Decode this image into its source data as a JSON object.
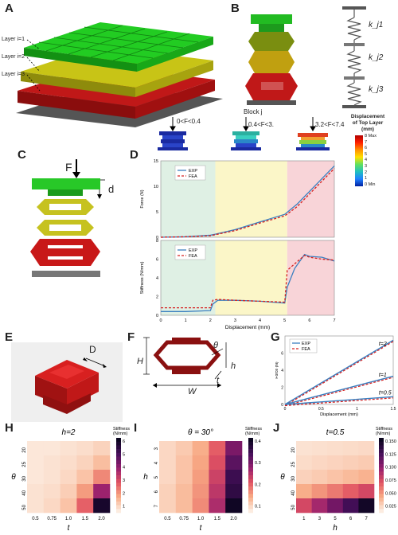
{
  "panels": {
    "A": "A",
    "B": "B",
    "C": "C",
    "D": "D",
    "E": "E",
    "F": "F",
    "G": "G",
    "H": "H",
    "I": "I",
    "J": "J"
  },
  "panelA": {
    "layers": [
      "Layer i=1",
      "Layer i=2",
      "Layer i=3"
    ]
  },
  "panelB": {
    "block_label": "Block j",
    "springs": [
      "k_j1",
      "k_j2",
      "k_j3"
    ]
  },
  "panelC": {
    "force": "F",
    "disp": "d"
  },
  "panelD": {
    "insets": [
      "0<F<0.4",
      "0.4<F<3.",
      "3.2<F<7.4"
    ],
    "colorbar_title": [
      "Displacement",
      "of Top Layer",
      "(mm)"
    ],
    "colorbar_ticks": [
      "8 Max",
      "7",
      "6",
      "5",
      "4",
      "3",
      "2",
      "1",
      "0 Min"
    ],
    "top_ylabel": "Force (N)",
    "bottom_ylabel": "Stiffness (N/mm)",
    "xlabel": "Displacement (mm)",
    "legend": [
      "EXP",
      "FEA"
    ],
    "xticks": [
      "0",
      "1",
      "2",
      "3",
      "4",
      "5",
      "6",
      "7"
    ],
    "top_yticks": [
      "0",
      "5",
      "10",
      "15"
    ],
    "bottom_yticks": [
      "0",
      "2",
      "4",
      "6",
      "8"
    ]
  },
  "panelE": {
    "dim": "D"
  },
  "panelF": {
    "H": "H",
    "W": "W",
    "h": "h",
    "t": "t",
    "theta": "θ"
  },
  "panelG": {
    "legend": [
      "EXP",
      "FEA"
    ],
    "labels": [
      "t=2",
      "t=1",
      "t=0.5"
    ],
    "ylabel": "Force (N)",
    "xlabel": "Displacement (mm)",
    "xticks": [
      "0",
      "0.5",
      "1",
      "1.5"
    ],
    "yticks": [
      "0",
      "2",
      "4",
      "6"
    ]
  },
  "heatmapH": {
    "title": "h=2",
    "cbar_title": [
      "Stiffness",
      "(N/mm)"
    ],
    "xlabel": "t",
    "ylabel": "θ",
    "xticks": [
      "0.5",
      "0.75",
      "1.0",
      "1.5",
      "2.0"
    ],
    "yticks": [
      "20",
      "25",
      "30",
      "40",
      "50"
    ],
    "cbar_ticks": [
      "6",
      "5",
      "4",
      "3",
      "2",
      "1"
    ],
    "values": [
      [
        0.1,
        0.1,
        0.2,
        0.3,
        0.5
      ],
      [
        0.1,
        0.2,
        0.3,
        0.5,
        0.9
      ],
      [
        0.1,
        0.2,
        0.4,
        0.8,
        1.8
      ],
      [
        0.2,
        0.3,
        0.6,
        1.5,
        3.8
      ],
      [
        0.2,
        0.4,
        0.8,
        2.4,
        6.2
      ]
    ],
    "vmax": 6.5
  },
  "heatmapI": {
    "title": "θ = 30°",
    "cbar_title": [
      "Stiffness",
      "(N/mm)"
    ],
    "xlabel": "t",
    "ylabel": "h",
    "xticks": [
      "0.5",
      "0.75",
      "1.0",
      "1.5",
      "2.0"
    ],
    "yticks": [
      "3",
      "4",
      "5",
      "6",
      "7"
    ],
    "cbar_ticks": [
      "0.4",
      "0.3",
      "0.2",
      "0.1"
    ],
    "values": [
      [
        0.03,
        0.05,
        0.09,
        0.18,
        0.32
      ],
      [
        0.03,
        0.06,
        0.1,
        0.2,
        0.36
      ],
      [
        0.03,
        0.06,
        0.11,
        0.22,
        0.4
      ],
      [
        0.04,
        0.07,
        0.12,
        0.24,
        0.42
      ],
      [
        0.04,
        0.07,
        0.13,
        0.26,
        0.47
      ]
    ],
    "vmax": 0.48
  },
  "heatmapJ": {
    "title": "t=0.5",
    "cbar_title": [
      "Stiffness",
      "(N/mm)"
    ],
    "xlabel": "h",
    "ylabel": "θ",
    "xticks": [
      "1",
      "3",
      "5",
      "6",
      "7"
    ],
    "yticks": [
      "20",
      "25",
      "30",
      "40",
      "50"
    ],
    "cbar_ticks": [
      "0.150",
      "0.125",
      "0.100",
      "0.075",
      "0.050",
      "0.025"
    ],
    "values": [
      [
        0.005,
        0.006,
        0.007,
        0.008,
        0.009
      ],
      [
        0.008,
        0.01,
        0.012,
        0.014,
        0.016
      ],
      [
        0.013,
        0.016,
        0.02,
        0.024,
        0.028
      ],
      [
        0.03,
        0.04,
        0.05,
        0.06,
        0.07
      ],
      [
        0.07,
        0.09,
        0.11,
        0.13,
        0.155
      ]
    ],
    "vmax": 0.16
  },
  "chart_data": [
    {
      "type": "line",
      "name": "D-force",
      "xlabel": "Displacement (mm)",
      "ylabel": "Force (N)",
      "series": [
        {
          "name": "EXP",
          "x": [
            0,
            1,
            2,
            2.2,
            3,
            4,
            5,
            5.5,
            6,
            6.5,
            7
          ],
          "values": [
            0,
            0.1,
            0.4,
            0.6,
            1.5,
            3,
            4.5,
            6.5,
            9,
            11.5,
            14
          ]
        },
        {
          "name": "FEA",
          "x": [
            0,
            1,
            2,
            2.2,
            3,
            4,
            5,
            5.5,
            6,
            6.5,
            7
          ],
          "values": [
            0,
            0.1,
            0.3,
            0.5,
            1.3,
            2.8,
            4.2,
            6,
            8.5,
            11,
            13.5
          ]
        }
      ],
      "xlim": [
        0,
        7
      ],
      "ylim": [
        0,
        15
      ]
    },
    {
      "type": "line",
      "name": "D-stiffness",
      "xlabel": "Displacement (mm)",
      "ylabel": "Stiffness (N/mm)",
      "series": [
        {
          "name": "EXP",
          "x": [
            0,
            1,
            2,
            2.1,
            2.3,
            3,
            4,
            5,
            5.1,
            5.4,
            5.8,
            6,
            6.5,
            7
          ],
          "values": [
            0.4,
            0.4,
            0.5,
            1.2,
            1.6,
            1.6,
            1.5,
            1.3,
            3,
            5,
            6.5,
            6.3,
            6.2,
            5.8
          ]
        },
        {
          "name": "FEA",
          "x": [
            0,
            1,
            2,
            2.1,
            2.3,
            3,
            4,
            5,
            5.1,
            5.4,
            5.8,
            6,
            6.5,
            7
          ],
          "values": [
            0.8,
            0.8,
            0.8,
            1.6,
            1.7,
            1.6,
            1.5,
            1.4,
            4.8,
            5.5,
            6.4,
            6.2,
            6.0,
            5.9
          ]
        }
      ],
      "xlim": [
        0,
        7
      ],
      "ylim": [
        0,
        8
      ]
    },
    {
      "type": "line",
      "name": "G",
      "xlabel": "Displacement (mm)",
      "ylabel": "Force (N)",
      "series": [
        {
          "name": "t=2",
          "x": [
            0,
            0.5,
            1,
            1.5
          ],
          "values": [
            0,
            2.5,
            5,
            7.5
          ]
        },
        {
          "name": "t=1",
          "x": [
            0,
            0.5,
            1,
            1.5
          ],
          "values": [
            0,
            1.1,
            2.2,
            3.3
          ]
        },
        {
          "name": "t=0.5",
          "x": [
            0,
            0.5,
            1,
            1.5
          ],
          "values": [
            0,
            0.3,
            0.6,
            0.9
          ]
        }
      ],
      "xlim": [
        0,
        1.5
      ],
      "ylim": [
        0,
        8
      ]
    }
  ]
}
